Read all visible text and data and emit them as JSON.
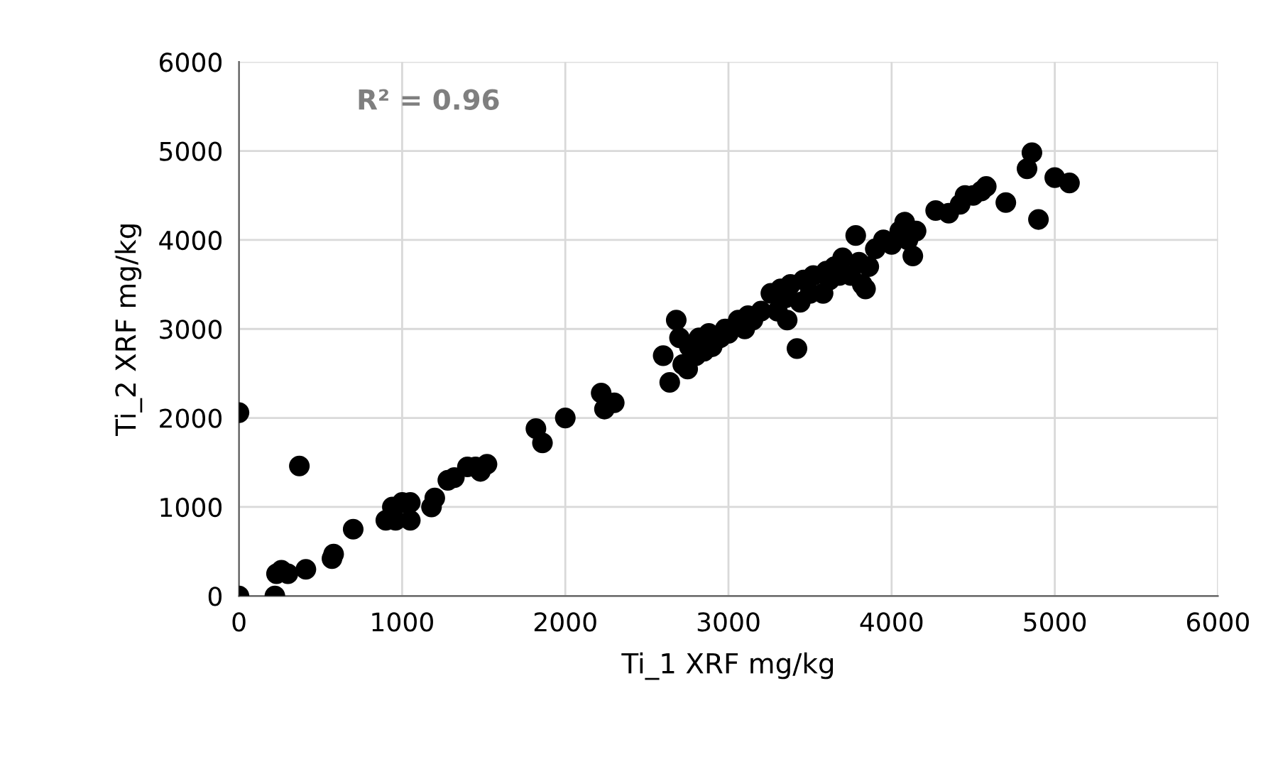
{
  "chart_data": {
    "type": "scatter",
    "xlabel": "Ti_1 XRF mg/kg",
    "ylabel": "Ti_2 XRF mg/kg",
    "annotations": [
      "R² = 0.96"
    ],
    "xlim": [
      0,
      6000
    ],
    "xticks": [
      0,
      1000,
      2000,
      3000,
      4000,
      5000,
      6000
    ],
    "ylim": [
      0,
      6000
    ],
    "yticks": [
      0,
      1000,
      2000,
      3000,
      4000,
      5000,
      6000
    ],
    "grid": true,
    "marker": "circle",
    "series": [
      {
        "color": "#000000",
        "x": [
          0,
          0,
          220,
          230,
          260,
          300,
          370,
          410,
          570,
          580,
          700,
          900,
          940,
          960,
          1000,
          1050,
          1050,
          1180,
          1200,
          1280,
          1320,
          1400,
          1450,
          1480,
          1520,
          1820,
          1860,
          2000,
          2220,
          2240,
          2300,
          2600,
          2640,
          2680,
          2700,
          2720,
          2750,
          2760,
          2800,
          2820,
          2850,
          2880,
          2900,
          2950,
          2980,
          3000,
          3060,
          3100,
          3120,
          3150,
          3200,
          3260,
          3300,
          3320,
          3350,
          3360,
          3380,
          3420,
          3440,
          3460,
          3500,
          3520,
          3580,
          3600,
          3620,
          3650,
          3680,
          3700,
          3750,
          3780,
          3800,
          3820,
          3840,
          3860,
          3900,
          3950,
          4000,
          4050,
          4080,
          4100,
          4130,
          4150,
          4270,
          4350,
          4420,
          4450,
          4500,
          4550,
          4580,
          4700,
          4830,
          4860,
          4900,
          5000,
          5090
        ],
        "values": [
          0,
          2060,
          0,
          250,
          290,
          250,
          1460,
          300,
          420,
          470,
          750,
          850,
          1000,
          850,
          1050,
          1050,
          850,
          1000,
          1100,
          1300,
          1330,
          1450,
          1450,
          1400,
          1480,
          1880,
          1720,
          2000,
          2280,
          2100,
          2170,
          2700,
          2400,
          3100,
          2900,
          2600,
          2550,
          2800,
          2700,
          2900,
          2750,
          2950,
          2800,
          2900,
          3000,
          2950,
          3100,
          3000,
          3150,
          3100,
          3200,
          3400,
          3200,
          3450,
          3350,
          3100,
          3500,
          2780,
          3300,
          3550,
          3400,
          3600,
          3400,
          3650,
          3550,
          3700,
          3600,
          3800,
          3600,
          4050,
          3750,
          3500,
          3450,
          3700,
          3900,
          4000,
          3950,
          4100,
          4200,
          4000,
          3820,
          4100,
          4330,
          4300,
          4400,
          4500,
          4500,
          4550,
          4600,
          4420,
          4800,
          4980,
          4230,
          4700,
          4640
        ]
      }
    ]
  }
}
